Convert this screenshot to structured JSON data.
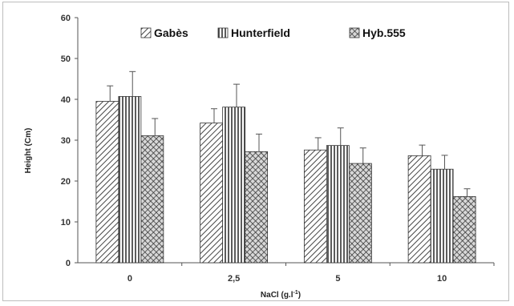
{
  "chart_data": {
    "type": "bar",
    "title": "",
    "xlabel": "NaCl (g.l",
    "xlabel_sup": "-1",
    "xlabel_close": ")",
    "ylabel": "Height (Cm)",
    "ylim": [
      0,
      60
    ],
    "yticks": [
      0,
      10,
      20,
      30,
      40,
      50,
      60
    ],
    "categories": [
      "0",
      "2,5",
      "5",
      "10"
    ],
    "legend_position": "top",
    "grid": false,
    "series": [
      {
        "name": "Gabès",
        "pattern": "diagonal-hatch",
        "values": [
          39.5,
          34.2,
          27.6,
          26.2
        ],
        "errors": [
          3.8,
          3.5,
          3.0,
          2.6
        ]
      },
      {
        "name": "Hunterfield",
        "pattern": "vertical-stripes",
        "values": [
          40.7,
          38.1,
          28.7,
          22.9
        ],
        "errors": [
          6.1,
          5.6,
          4.3,
          3.4
        ]
      },
      {
        "name": "Hyb.555",
        "pattern": "crosshatch",
        "values": [
          31.1,
          27.2,
          24.3,
          16.2
        ],
        "errors": [
          4.2,
          4.3,
          3.8,
          1.9
        ]
      }
    ],
    "colors": {
      "bar_stroke": "#333333",
      "hatch": "#444444",
      "axis": "#555555"
    }
  }
}
